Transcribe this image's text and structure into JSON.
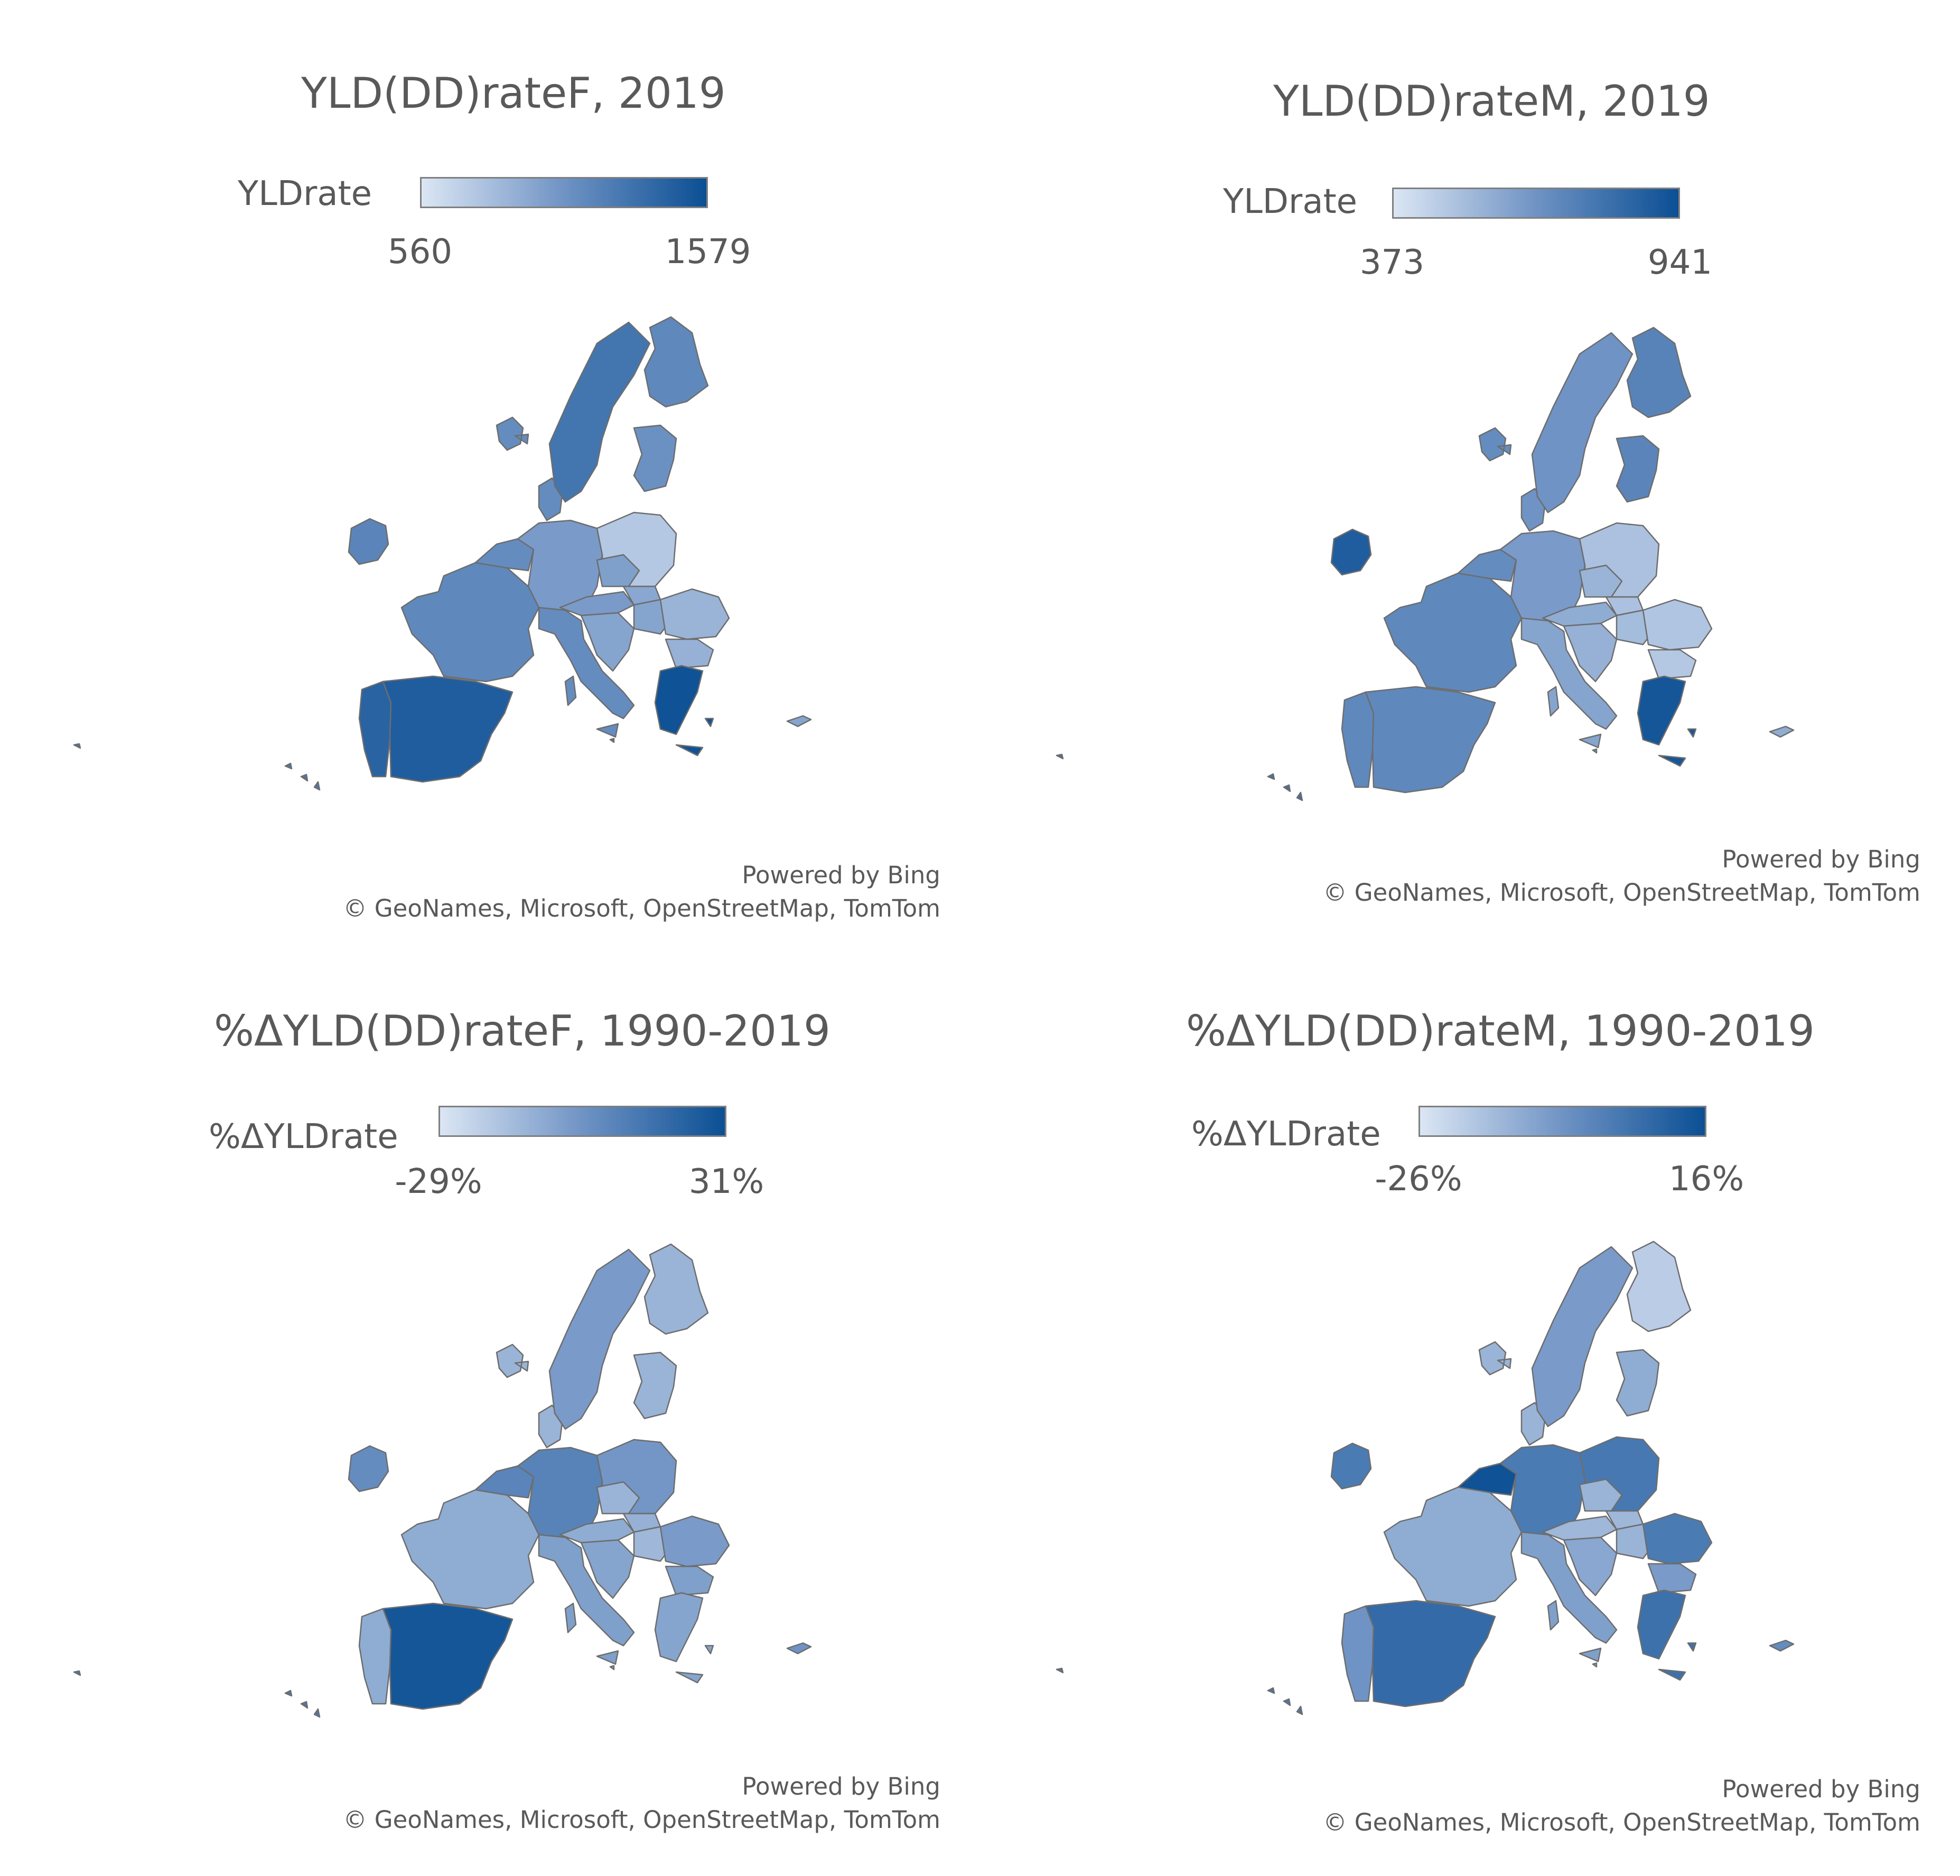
{
  "colors": {
    "low": "#dbe6f4",
    "mid": "#6f93c4",
    "high": "#0b4f94",
    "border": "#6d6d6d"
  },
  "map_credit": {
    "line1": "Powered by Bing",
    "line2": "© GeoNames, Microsoft, OpenStreetMap, TomTom"
  },
  "panels": [
    {
      "title": "YLD(DD)rateF, 2019",
      "legend": {
        "label": "YLDrate",
        "min": "560",
        "max": "1579"
      },
      "shading": {
        "ireland": 0.6,
        "iceland_area": 0.55,
        "portugal": 0.85,
        "spain": 0.9,
        "france": 0.58,
        "benelux": 0.55,
        "uk_excluded": 0.0,
        "germany": 0.45,
        "denmark": 0.55,
        "norway_sweden": 0.72,
        "finland": 0.58,
        "baltics": 0.52,
        "poland": 0.18,
        "czechia": 0.42,
        "austria": 0.45,
        "italy": 0.55,
        "slovenia_croatia": 0.4,
        "hungary": 0.4,
        "slovakia": 0.38,
        "romania": 0.3,
        "bulgaria": 0.32,
        "greece": 0.98,
        "cyprus": 0.4,
        "islands": 0.7,
        "malta": 0.6
      }
    },
    {
      "title": "YLD(DD)rateM, 2019",
      "legend": {
        "label": "YLDrate",
        "min": "373",
        "max": "941"
      },
      "shading": {
        "ireland": 0.9,
        "iceland_area": 0.55,
        "portugal": 0.58,
        "spain": 0.58,
        "france": 0.58,
        "benelux": 0.55,
        "germany": 0.45,
        "denmark": 0.5,
        "norway_sweden": 0.5,
        "finland": 0.62,
        "baltics": 0.6,
        "poland": 0.22,
        "czechia": 0.3,
        "austria": 0.35,
        "italy": 0.4,
        "slovenia_croatia": 0.32,
        "hungary": 0.25,
        "slovakia": 0.22,
        "romania": 0.2,
        "bulgaria": 0.18,
        "greece": 0.95,
        "cyprus": 0.35,
        "islands": 0.75,
        "malta": 0.45
      }
    },
    {
      "title": "%ΔYLD(DD)rateF, 1990-2019",
      "legend": {
        "label": "%ΔYLDrate",
        "min": "-29%",
        "max": "31%"
      },
      "shading": {
        "ireland": 0.55,
        "iceland_area": 0.3,
        "portugal": 0.35,
        "spain": 0.95,
        "france": 0.35,
        "benelux": 0.6,
        "germany": 0.62,
        "denmark": 0.3,
        "norway_sweden": 0.45,
        "finland": 0.3,
        "baltics": 0.3,
        "poland": 0.48,
        "czechia": 0.3,
        "austria": 0.35,
        "italy": 0.42,
        "slovenia_croatia": 0.4,
        "hungary": 0.28,
        "slovakia": 0.32,
        "romania": 0.45,
        "bulgaria": 0.42,
        "greece": 0.4,
        "cyprus": 0.5,
        "islands": 0.7,
        "malta": 0.4
      }
    },
    {
      "title": "%ΔYLD(DD)rateM, 1990-2019",
      "legend": {
        "label": "%ΔYLDrate",
        "min": "-26%",
        "max": "16%"
      },
      "shading": {
        "ireland": 0.68,
        "iceland_area": 0.3,
        "portugal": 0.5,
        "spain": 0.8,
        "france": 0.35,
        "benelux": 0.98,
        "germany": 0.68,
        "denmark": 0.3,
        "norway_sweden": 0.45,
        "finland": 0.15,
        "baltics": 0.35,
        "poland": 0.7,
        "czechia": 0.3,
        "austria": 0.28,
        "italy": 0.42,
        "slovenia_croatia": 0.38,
        "hungary": 0.3,
        "slovakia": 0.28,
        "romania": 0.68,
        "bulgaria": 0.45,
        "greece": 0.75,
        "cyprus": 0.55,
        "islands": 0.7,
        "malta": 0.4
      }
    }
  ]
}
